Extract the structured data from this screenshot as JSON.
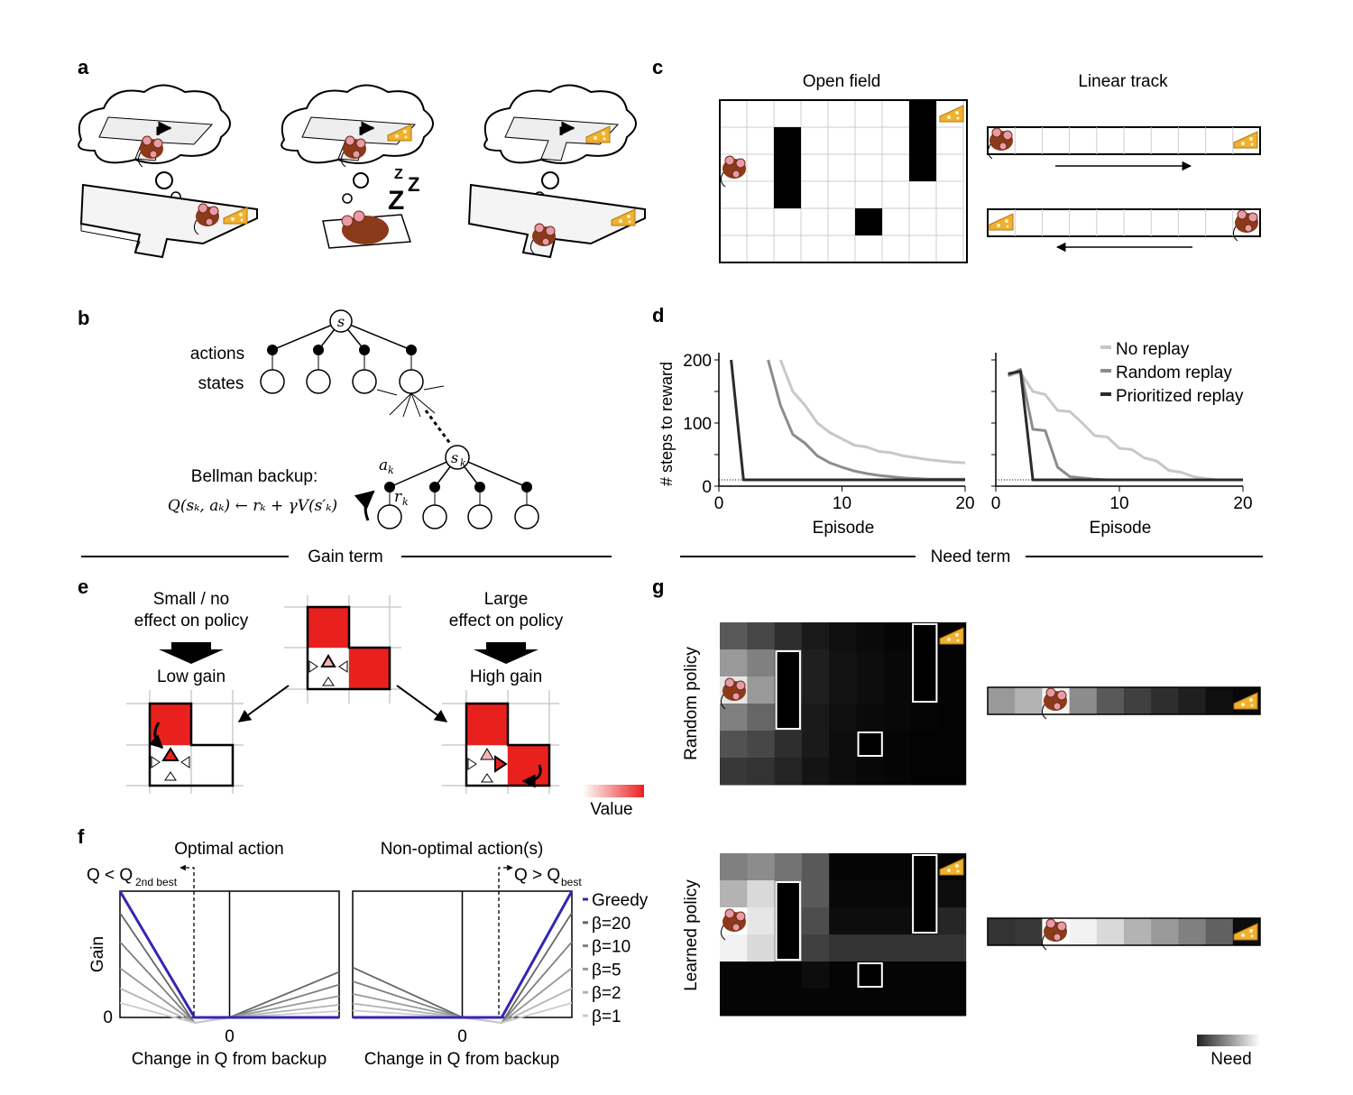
{
  "panels": {
    "a": "a",
    "b": "b",
    "c": "c",
    "d": "d",
    "e": "e",
    "f": "f",
    "g": "g"
  },
  "section_labels": {
    "gain": "Gain term",
    "need": "Need term"
  },
  "tree": {
    "actions": "actions",
    "states": "states",
    "root": "s",
    "sk": "s",
    "sk_sub": "k",
    "ak": "a",
    "ak_sub": "k",
    "rk": "r",
    "rk_sub": "k",
    "bellman_title": "Bellman backup:",
    "bellman_eq": "Q(sₖ, aₖ) ← rₖ + γV(s′ₖ)"
  },
  "panel_c": {
    "open_field": "Open field",
    "linear_track": "Linear track"
  },
  "chart_data": [
    {
      "type": "line",
      "xlabel": "Episode",
      "ylabel": "# steps to reward",
      "xlim": [
        0,
        20
      ],
      "ylim": [
        0,
        200
      ],
      "xticks": [
        0,
        10,
        20
      ],
      "yticks": [
        0,
        100,
        200
      ],
      "series": [
        {
          "name": "No replay",
          "color": "#c8c8c8",
          "x": [
            1,
            2,
            3,
            4,
            5,
            6,
            7,
            8,
            9,
            10,
            11,
            12,
            13,
            14,
            15,
            16,
            17,
            18,
            19,
            20
          ],
          "y": [
            null,
            null,
            null,
            null,
            200,
            150,
            128,
            100,
            85,
            75,
            65,
            62,
            55,
            53,
            48,
            45,
            42,
            40,
            38,
            37
          ]
        },
        {
          "name": "Random replay",
          "color": "#8c8c8c",
          "x": [
            1,
            2,
            3,
            4,
            5,
            6,
            7,
            8,
            9,
            10,
            11,
            12,
            13,
            14,
            15,
            16,
            17,
            18,
            19,
            20
          ],
          "y": [
            null,
            null,
            null,
            200,
            128,
            82,
            68,
            48,
            37,
            30,
            24,
            20,
            17,
            15,
            13,
            12,
            11,
            11,
            11,
            11
          ]
        },
        {
          "name": "Prioritized replay",
          "color": "#2b2b2b",
          "x": [
            1,
            2,
            3,
            4,
            5,
            6,
            7,
            8,
            9,
            10,
            11,
            12,
            13,
            14,
            15,
            16,
            17,
            18,
            19,
            20
          ],
          "y": [
            200,
            10,
            10,
            10,
            10,
            10,
            10,
            10,
            10,
            10,
            10,
            10,
            10,
            10,
            10,
            10,
            10,
            10,
            10,
            10
          ]
        }
      ]
    },
    {
      "type": "line",
      "xlabel": "Episode",
      "ylabel": "",
      "xlim": [
        0,
        20
      ],
      "ylim": [
        0,
        200
      ],
      "xticks": [
        0,
        10,
        20
      ],
      "yticks": [],
      "series": [
        {
          "name": "No replay",
          "color": "#c8c8c8",
          "x": [
            1,
            2,
            3,
            4,
            5,
            6,
            7,
            8,
            9,
            10,
            11,
            12,
            13,
            14,
            15,
            16,
            17,
            18,
            19,
            20
          ],
          "y": [
            175,
            180,
            150,
            145,
            120,
            118,
            100,
            80,
            78,
            60,
            58,
            45,
            40,
            25,
            22,
            15,
            12,
            10,
            10,
            10
          ]
        },
        {
          "name": "Random replay",
          "color": "#8c8c8c",
          "x": [
            1,
            2,
            3,
            4,
            5,
            6,
            7,
            8,
            9,
            10,
            11,
            12,
            13,
            14,
            15,
            16,
            17,
            18,
            19,
            20
          ],
          "y": [
            175,
            185,
            90,
            88,
            30,
            15,
            13,
            11,
            10,
            10,
            10,
            10,
            10,
            10,
            10,
            10,
            10,
            10,
            10,
            10
          ]
        },
        {
          "name": "Prioritized replay",
          "color": "#2b2b2b",
          "x": [
            1,
            2,
            3,
            4,
            5,
            6,
            7,
            8,
            9,
            10,
            11,
            12,
            13,
            14,
            15,
            16,
            17,
            18,
            19,
            20
          ],
          "y": [
            178,
            182,
            10,
            10,
            10,
            10,
            10,
            10,
            10,
            10,
            10,
            10,
            10,
            10,
            10,
            10,
            10,
            10,
            10,
            10
          ]
        }
      ]
    },
    {
      "type": "line",
      "title": "Optimal action",
      "xlabel": "Change in Q from backup",
      "ylabel": "Gain",
      "xticks": [
        "0"
      ],
      "yticks": [
        "0"
      ]
    },
    {
      "type": "line",
      "title": "Non-optimal action(s)",
      "xlabel": "Change in Q from backup",
      "ylabel": "",
      "xticks": [
        "0"
      ],
      "yticks": []
    }
  ],
  "legend_d": [
    "No replay",
    "Random replay",
    "Prioritized replay"
  ],
  "panel_e": {
    "left_top1": "Small / no",
    "left_top2": "effect on policy",
    "left_gain": "Low gain",
    "right_top1": "Large",
    "right_top2": "effect on policy",
    "right_gain": "High gain",
    "value_label": "Value"
  },
  "panel_f": {
    "q_left": "Q < Q",
    "q_left_sub": "2nd best",
    "q_right": "Q > Q",
    "q_right_sub": "best",
    "legend": [
      {
        "label": "Greedy",
        "color": "#3326b5"
      },
      {
        "label": "β=20",
        "color": "#666"
      },
      {
        "label": "β=10",
        "color": "#808080"
      },
      {
        "label": "β=5",
        "color": "#999"
      },
      {
        "label": "β=2",
        "color": "#b3b3b3"
      },
      {
        "label": "β=1",
        "color": "#cccccc"
      }
    ]
  },
  "panel_g": {
    "random_policy": "Random policy",
    "learned_policy": "Learned policy",
    "need_label": "Need"
  },
  "colors": {
    "value": "#e8211f",
    "greedy": "#3326b5",
    "mouse": "#8b3a1a",
    "cheese": "#f0b030"
  }
}
